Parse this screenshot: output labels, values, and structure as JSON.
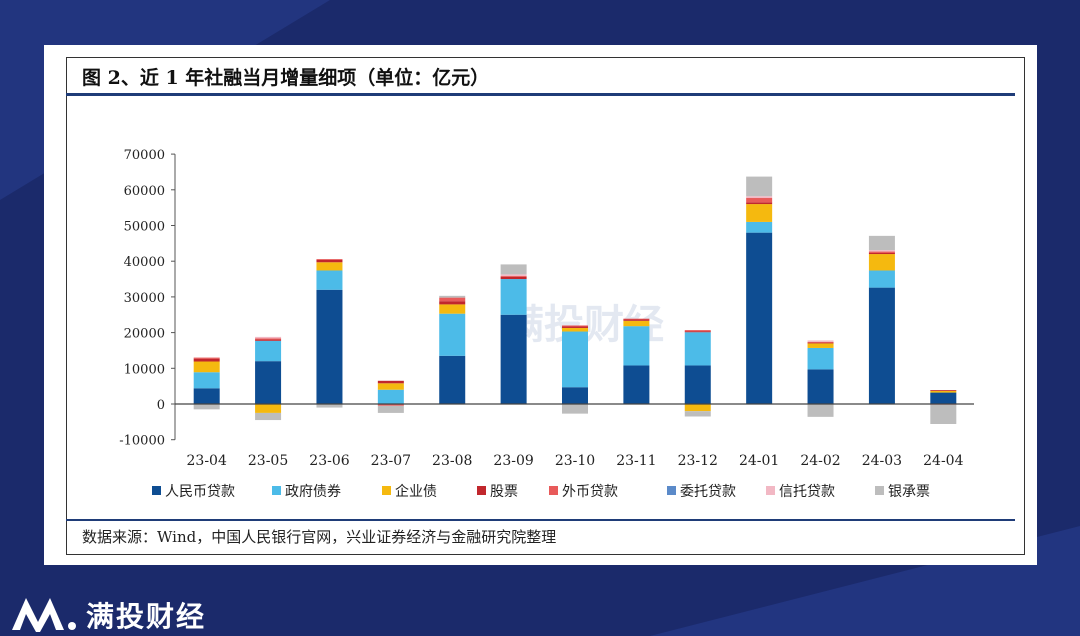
{
  "brand": {
    "name": "满投财经"
  },
  "figure": {
    "title": "图 2、近 1 年社融当月增量细项（单位：亿元）",
    "source": "数据来源：Wind，中国人民银行官网，兴业证券经济与金融研究院整理"
  },
  "colors": {
    "background": "#1b2a6b",
    "card": "#ffffff",
    "rule": "#1f3c78"
  },
  "chart_data": {
    "type": "bar",
    "stacked": true,
    "title": "图 2、近 1 年社融当月增量细项（单位：亿元）",
    "categories": [
      "23-04",
      "23-05",
      "23-06",
      "23-07",
      "23-08",
      "23-09",
      "23-10",
      "23-11",
      "23-12",
      "24-01",
      "24-02",
      "24-03",
      "24-04"
    ],
    "ylim": [
      -10000,
      70000
    ],
    "yticks": [
      -10000,
      0,
      10000,
      20000,
      30000,
      40000,
      50000,
      60000,
      70000
    ],
    "legend_position": "bottom",
    "grid": false,
    "series": [
      {
        "name": "人民币贷款",
        "color": "#0e4d92",
        "values": [
          4400,
          12000,
          32000,
          0,
          13500,
          25000,
          4700,
          10800,
          10800,
          48000,
          9700,
          32600,
          3200
        ]
      },
      {
        "name": "政府债券",
        "color": "#4cbbe8",
        "values": [
          4500,
          5700,
          5400,
          4000,
          11800,
          10000,
          15600,
          11000,
          9300,
          3000,
          6000,
          4800,
          0
        ]
      },
      {
        "name": "企业债",
        "color": "#f5b90f",
        "values": [
          3000,
          -2500,
          2300,
          1800,
          2600,
          0,
          1000,
          1500,
          -2000,
          5000,
          1300,
          4600,
          500
        ]
      },
      {
        "name": "股票",
        "color": "#c1272d",
        "values": [
          800,
          400,
          700,
          700,
          900,
          600,
          400,
          400,
          300,
          500,
          200,
          300,
          200
        ]
      },
      {
        "name": "外币贷款",
        "color": "#e85a5a",
        "values": [
          300,
          300,
          200,
          -500,
          1000,
          300,
          300,
          200,
          300,
          1200,
          200,
          400,
          -200
        ]
      },
      {
        "name": "委托贷款",
        "color": "#5b8ac9",
        "values": [
          0,
          0,
          0,
          0,
          0,
          0,
          0,
          0,
          0,
          0,
          0,
          0,
          0
        ]
      },
      {
        "name": "信托贷款",
        "color": "#f2b8c4",
        "values": [
          0,
          400,
          0,
          0,
          0,
          400,
          0,
          0,
          0,
          500,
          400,
          400,
          0
        ]
      },
      {
        "name": "银承票",
        "color": "#bdbdbd",
        "values": [
          -1500,
          -2000,
          -1000,
          -2000,
          500,
          2800,
          -2700,
          0,
          -1500,
          5500,
          -3600,
          4000,
          -5400
        ]
      }
    ]
  }
}
